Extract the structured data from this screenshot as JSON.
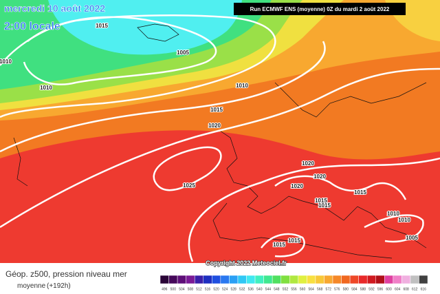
{
  "header": {
    "date": "mercredi 10 août 2022",
    "time": "2:00 locale",
    "run": "Run ECMWF ENS (moyenne) 0Z du mardi 2 août 2022"
  },
  "isobar_labels": [
    "1015",
    "1005",
    "1010",
    "1010",
    "1010",
    "1015",
    "1020",
    "1025",
    "1020",
    "1020",
    "1020",
    "1015",
    "1015",
    "1015",
    "1010",
    "1010",
    "1005",
    "1015",
    "1015"
  ],
  "copyright": "Copyright 2022 Meteociel.fr",
  "footer": {
    "title": "Géop. z500, pression niveau mer",
    "subtitle": "moyenne",
    "lead": "(+192h)"
  },
  "legend": {
    "labels": [
      "496",
      "500",
      "504",
      "508",
      "512",
      "516",
      "520",
      "524",
      "528",
      "532",
      "536",
      "540",
      "544",
      "548",
      "552",
      "556",
      "560",
      "564",
      "568",
      "572",
      "576",
      "580",
      "584",
      "588",
      "592",
      "596",
      "600",
      "604",
      "608",
      "612",
      "616"
    ],
    "colors": [
      "#2b0638",
      "#45095a",
      "#5e0f78",
      "#7a1a96",
      "#3a1fa8",
      "#1e2fc0",
      "#1f4fe0",
      "#2a78f0",
      "#2aa0f5",
      "#30c8f5",
      "#40e8f0",
      "#40f0c0",
      "#40e890",
      "#50e060",
      "#80e040",
      "#b0e840",
      "#e0f040",
      "#f8e040",
      "#f8c838",
      "#f8a830",
      "#f58828",
      "#f06820",
      "#ee4828",
      "#e82a2a",
      "#d01a20",
      "#b01018",
      "#e040a0",
      "#f080c8",
      "#f0b0e0",
      "#c0c0c0",
      "#404040"
    ]
  }
}
